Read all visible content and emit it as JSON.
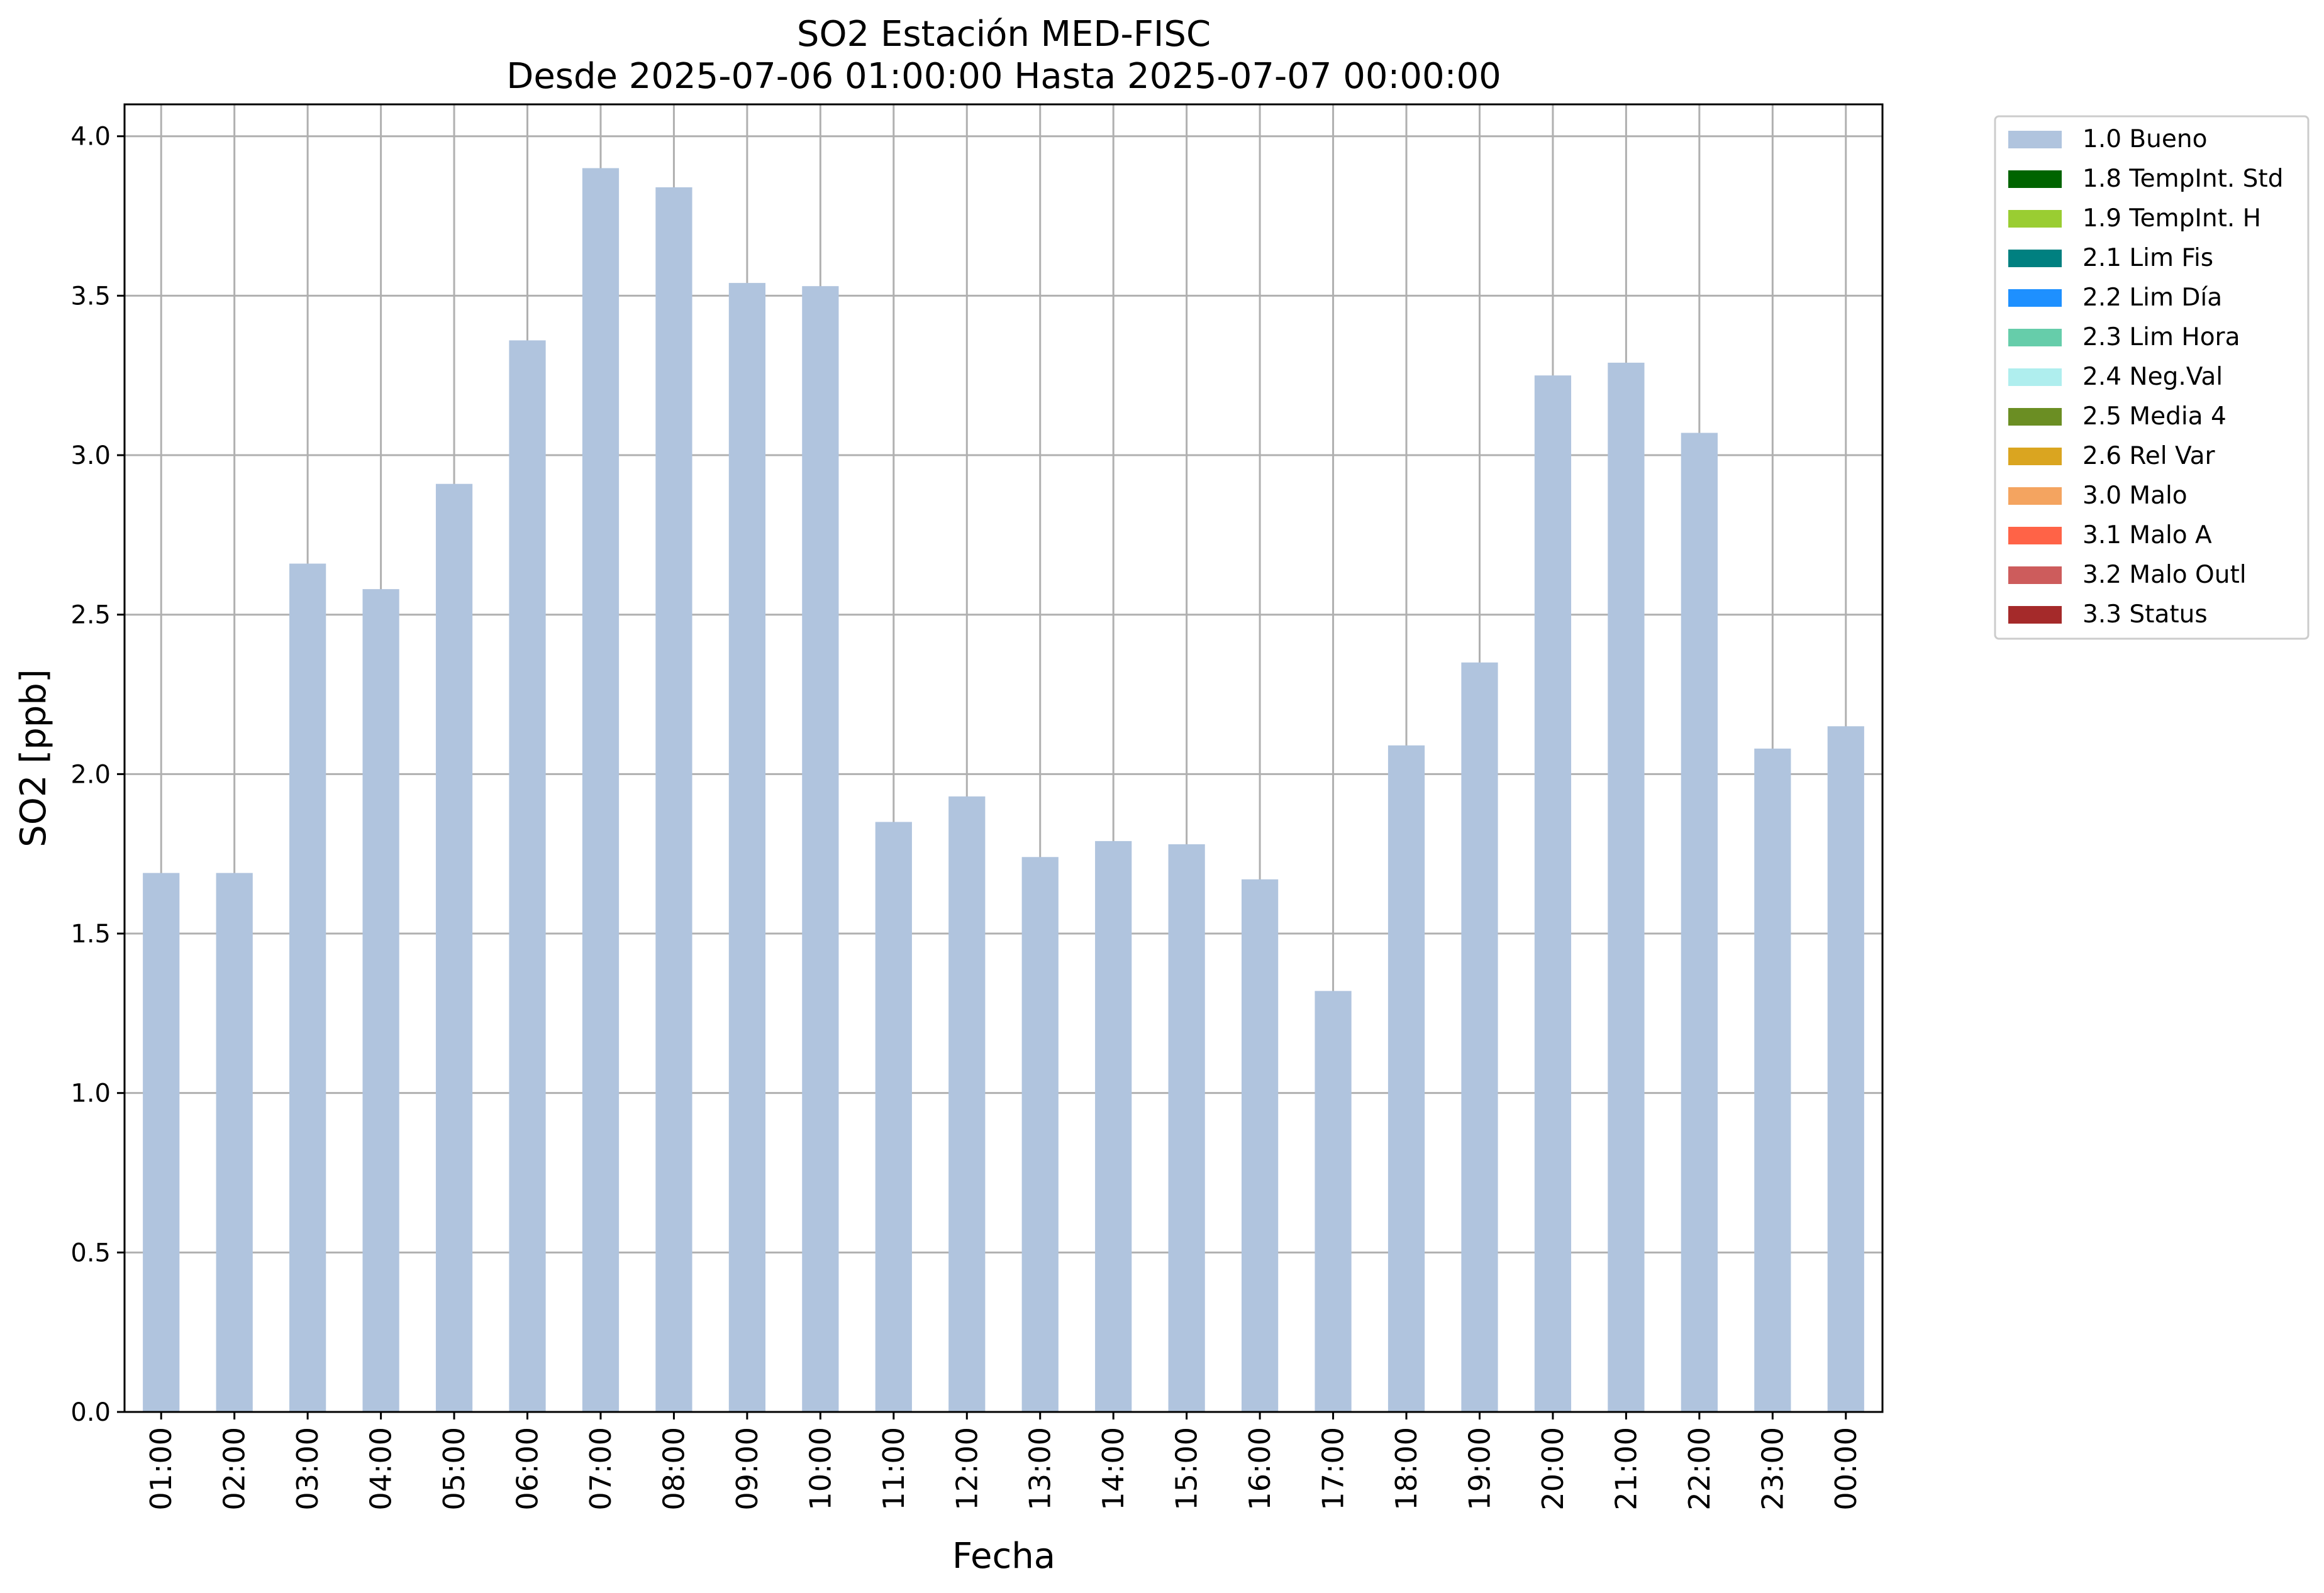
{
  "chart_data": {
    "type": "bar",
    "title": "SO2 Estación MED-FISC",
    "subtitle": "Desde 2025-07-06 01:00:00 Hasta 2025-07-07 00:00:00",
    "xlabel": "Fecha",
    "ylabel": "SO2 [ppb]",
    "ylim": [
      0,
      4.1
    ],
    "yticks": [
      "0.0",
      "0.5",
      "1.0",
      "1.5",
      "2.0",
      "2.5",
      "3.0",
      "3.5",
      "4.0"
    ],
    "grid": true,
    "legend_position": "outside top-right",
    "categories": [
      "01:00",
      "02:00",
      "03:00",
      "04:00",
      "05:00",
      "06:00",
      "07:00",
      "08:00",
      "09:00",
      "10:00",
      "11:00",
      "12:00",
      "13:00",
      "14:00",
      "15:00",
      "16:00",
      "17:00",
      "18:00",
      "19:00",
      "20:00",
      "21:00",
      "22:00",
      "23:00",
      "00:00"
    ],
    "series": [
      {
        "name": "1.0 Bueno",
        "color": "#b0c4de",
        "values": [
          1.69,
          1.69,
          2.66,
          2.58,
          2.91,
          3.36,
          3.9,
          3.84,
          3.54,
          3.53,
          1.85,
          1.93,
          1.74,
          1.79,
          1.78,
          1.67,
          1.32,
          2.09,
          2.35,
          3.25,
          3.29,
          3.07,
          2.08,
          2.15
        ]
      }
    ],
    "legend": [
      {
        "label": "1.0 Bueno",
        "color": "#b0c4de"
      },
      {
        "label": "1.8 TempInt. Std",
        "color": "#006400"
      },
      {
        "label": "1.9 TempInt. H",
        "color": "#9acd32"
      },
      {
        "label": "2.1 Lim Fis",
        "color": "#008080"
      },
      {
        "label": "2.2 Lim Día",
        "color": "#1e90ff"
      },
      {
        "label": "2.3 Lim Hora",
        "color": "#66cdaa"
      },
      {
        "label": "2.4 Neg.Val",
        "color": "#afeeee"
      },
      {
        "label": "2.5 Media 4",
        "color": "#6b8e23"
      },
      {
        "label": "2.6 Rel Var",
        "color": "#daa520"
      },
      {
        "label": "3.0 Malo",
        "color": "#f4a460"
      },
      {
        "label": "3.1 Malo A",
        "color": "#ff6347"
      },
      {
        "label": "3.2 Malo Outl",
        "color": "#cd5c5c"
      },
      {
        "label": "3.3 Status",
        "color": "#a52a2a"
      }
    ]
  }
}
